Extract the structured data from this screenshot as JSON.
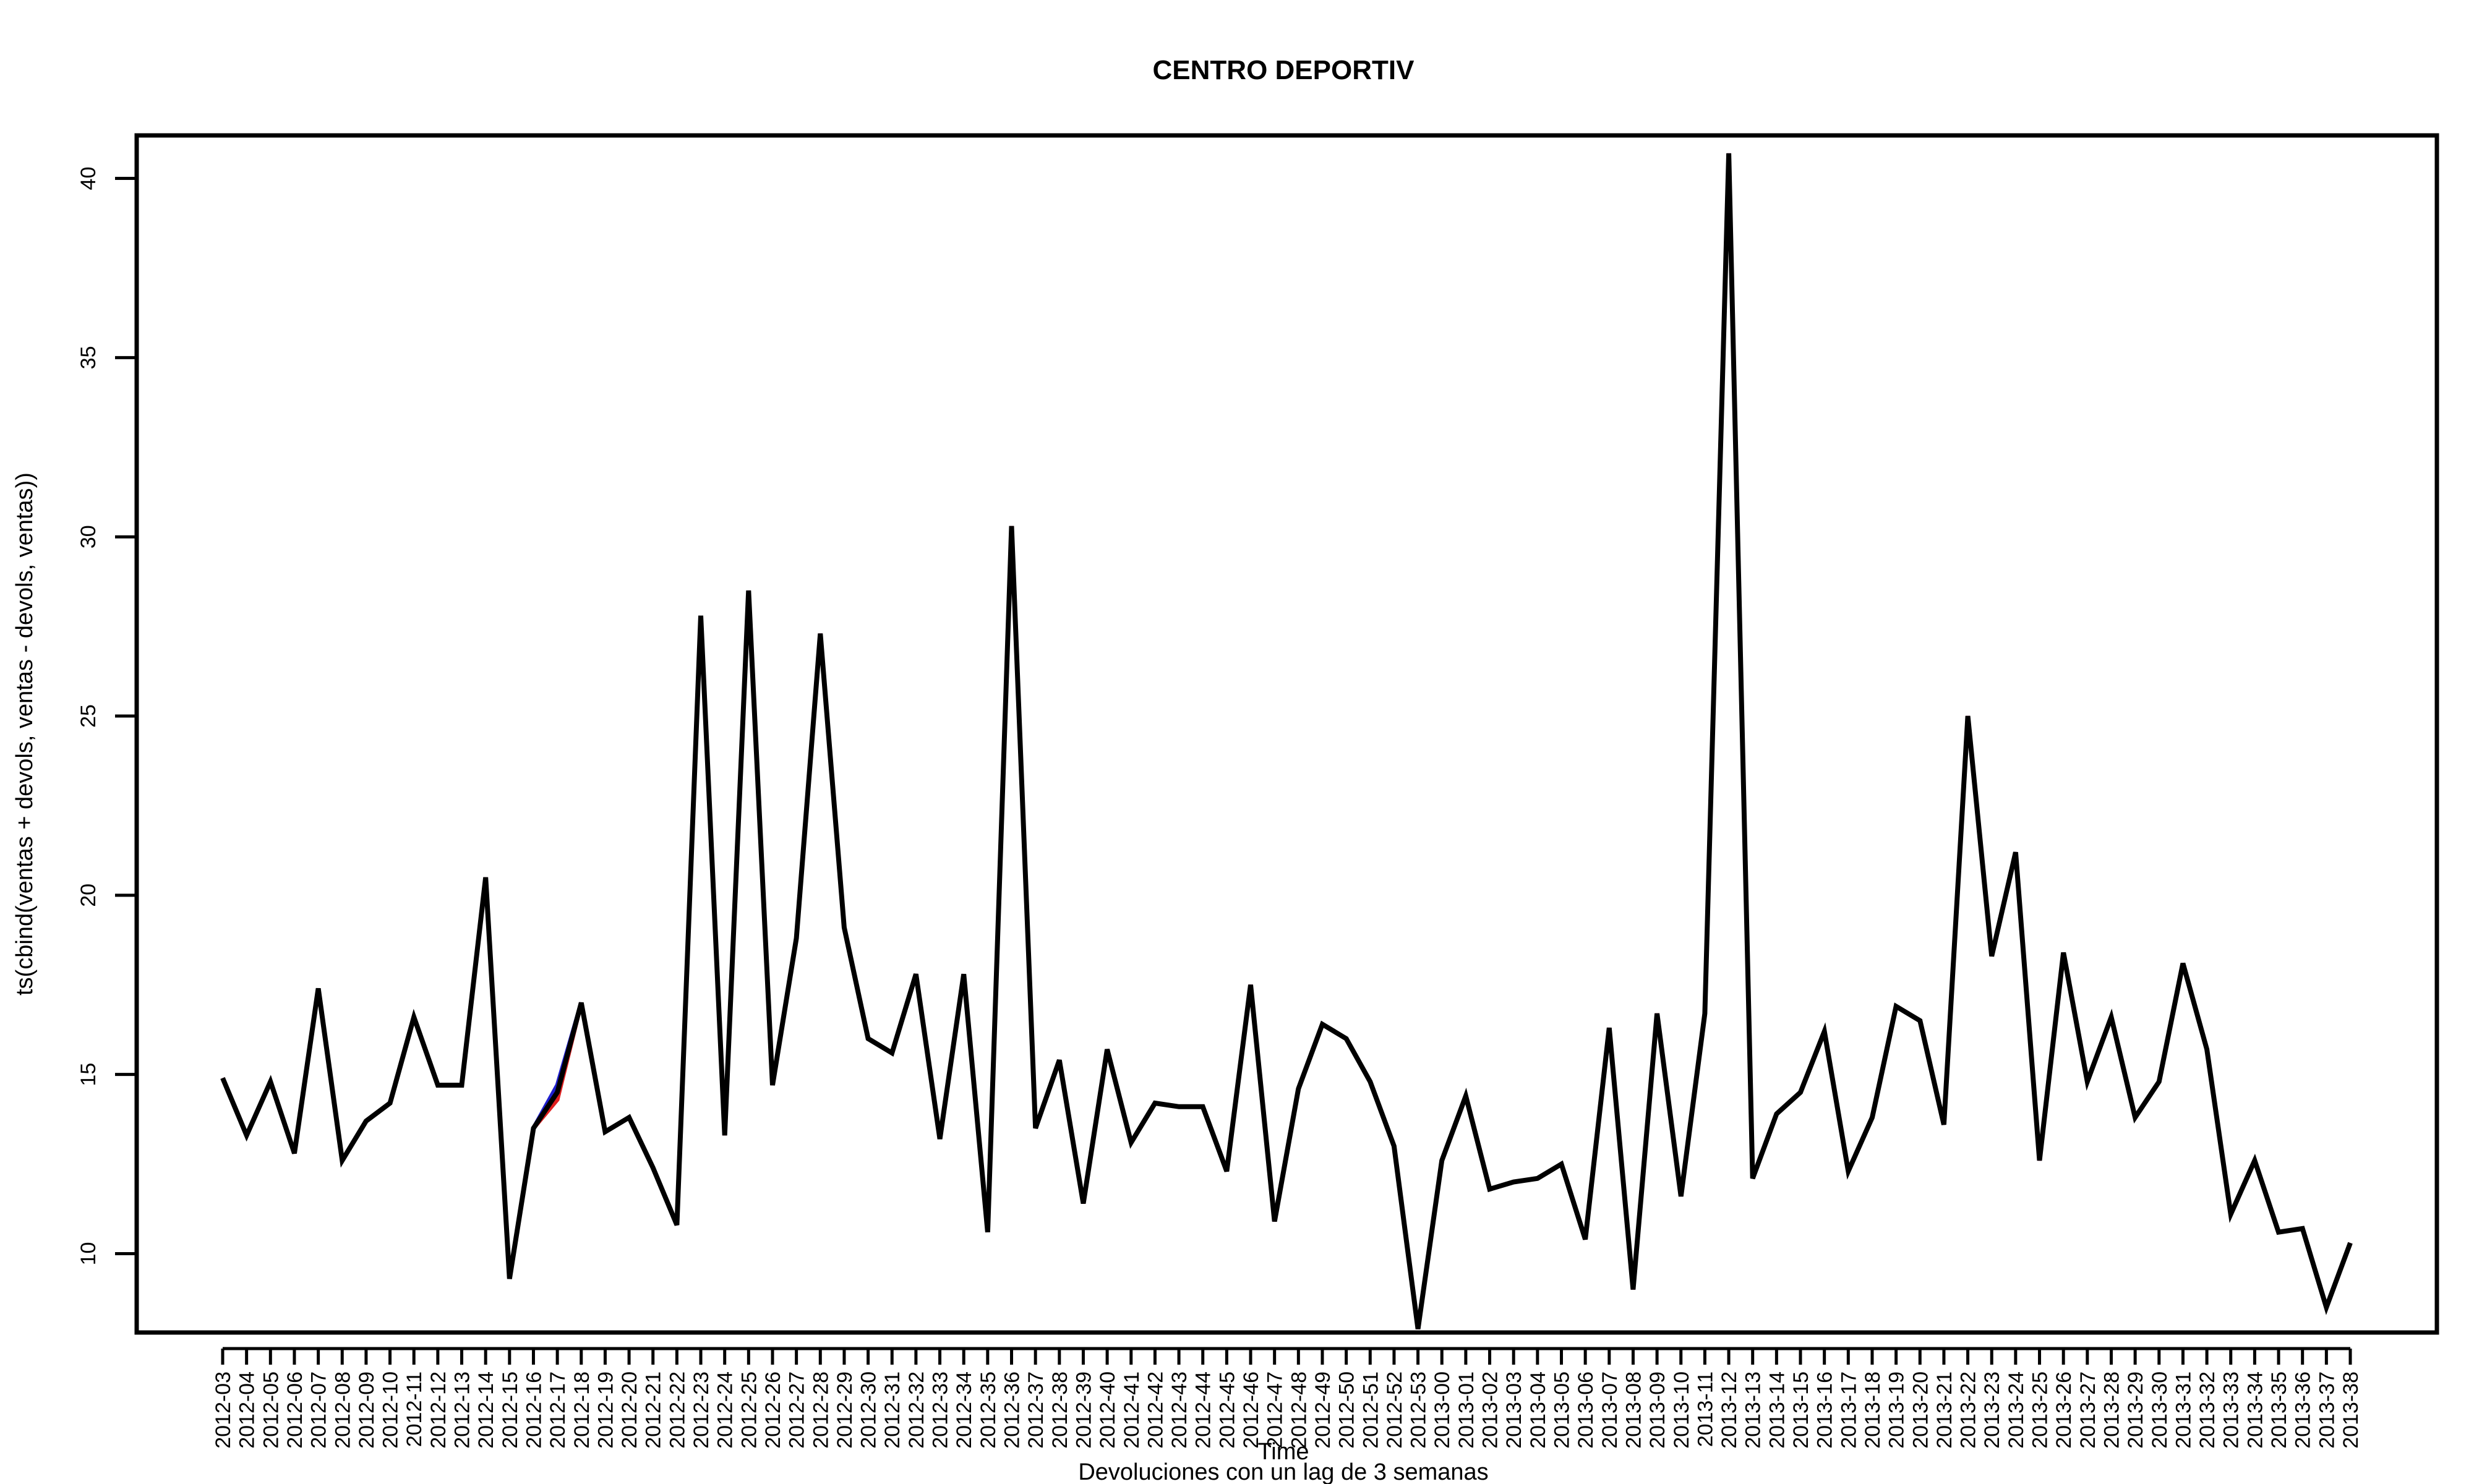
{
  "chart_data": {
    "type": "line",
    "title": "CENTRO DEPORTIV",
    "xlabel": "Time",
    "ylabel": "ts(cbind(ventas + devols, ventas - devols, ventas))",
    "subtitle": "Devoluciones con un lag de 3 semanas",
    "ylim": [
      7.8,
      41.2
    ],
    "yticks": [
      10,
      15,
      20,
      25,
      30,
      35,
      40
    ],
    "grid": false,
    "colors": {
      "upper": "#1f1fcf",
      "lower": "#e02020",
      "main": "#000000"
    },
    "categories": [
      "2012-03",
      "2012-04",
      "2012-05",
      "2012-06",
      "2012-07",
      "2012-08",
      "2012-09",
      "2012-10",
      "2012-11",
      "2012-12",
      "2012-13",
      "2012-14",
      "2012-15",
      "2012-16",
      "2012-17",
      "2012-18",
      "2012-19",
      "2012-20",
      "2012-21",
      "2012-22",
      "2012-23",
      "2012-24",
      "2012-25",
      "2012-26",
      "2012-27",
      "2012-28",
      "2012-29",
      "2012-30",
      "2012-31",
      "2012-32",
      "2012-33",
      "2012-34",
      "2012-35",
      "2012-36",
      "2012-37",
      "2012-38",
      "2012-39",
      "2012-40",
      "2012-41",
      "2012-42",
      "2012-43",
      "2012-44",
      "2012-45",
      "2012-46",
      "2012-47",
      "2012-48",
      "2012-49",
      "2012-50",
      "2012-51",
      "2012-52",
      "2012-53",
      "2013-00",
      "2013-01",
      "2013-02",
      "2013-03",
      "2013-04",
      "2013-05",
      "2013-06",
      "2013-07",
      "2013-08",
      "2013-09",
      "2013-10",
      "2013-11",
      "2013-12",
      "2013-13",
      "2013-14",
      "2013-15",
      "2013-16",
      "2013-17",
      "2013-18",
      "2013-19",
      "2013-20",
      "2013-21",
      "2013-22",
      "2013-23",
      "2013-24",
      "2013-25",
      "2013-26",
      "2013-27",
      "2013-28",
      "2013-29",
      "2013-30",
      "2013-31",
      "2013-32",
      "2013-33",
      "2013-34",
      "2013-35",
      "2013-36",
      "2013-37",
      "2013-38"
    ],
    "series": [
      {
        "key": "upper",
        "values": [
          14.9,
          13.3,
          14.8,
          12.8,
          17.4,
          12.6,
          13.7,
          14.2,
          16.6,
          14.7,
          14.7,
          20.5,
          9.3,
          13.5,
          14.7,
          17.0,
          13.4,
          13.8,
          12.4,
          10.8,
          27.8,
          13.3,
          28.5,
          14.7,
          18.8,
          27.3,
          19.1,
          16.0,
          15.6,
          17.8,
          13.2,
          17.8,
          10.6,
          30.3,
          13.5,
          15.4,
          11.4,
          15.7,
          13.1,
          14.2,
          14.1,
          14.1,
          12.3,
          17.5,
          10.9,
          14.6,
          16.4,
          16.0,
          14.8,
          13.0,
          7.9,
          12.6,
          14.4,
          11.8,
          12.0,
          12.1,
          12.5,
          10.4,
          16.3,
          9.0,
          16.7,
          11.6,
          16.7,
          40.7,
          12.1,
          13.9,
          14.5,
          16.2,
          12.3,
          13.8,
          16.9,
          16.5,
          13.6,
          25.0,
          18.3,
          21.2,
          12.6,
          18.4,
          14.8,
          16.6,
          13.8,
          14.8,
          18.1,
          15.7,
          11.1,
          12.6,
          10.6,
          10.7,
          8.5,
          10.3
        ]
      },
      {
        "key": "lower",
        "values": [
          14.9,
          13.3,
          14.8,
          12.8,
          17.4,
          12.6,
          13.7,
          14.2,
          16.6,
          14.7,
          14.7,
          20.5,
          9.3,
          13.5,
          14.3,
          17.0,
          13.4,
          13.8,
          12.4,
          10.8,
          27.8,
          13.3,
          28.5,
          14.7,
          18.8,
          27.3,
          19.1,
          16.0,
          15.6,
          17.8,
          13.2,
          17.8,
          10.6,
          30.3,
          13.5,
          15.4,
          11.4,
          15.7,
          13.1,
          14.2,
          14.1,
          14.1,
          12.3,
          17.5,
          10.9,
          14.6,
          16.4,
          16.0,
          14.8,
          13.0,
          7.9,
          12.6,
          14.4,
          11.8,
          12.0,
          12.1,
          12.5,
          10.4,
          16.3,
          9.0,
          16.7,
          11.6,
          16.7,
          40.7,
          12.1,
          13.9,
          14.5,
          16.2,
          12.3,
          13.8,
          16.9,
          16.5,
          13.6,
          25.0,
          18.3,
          21.2,
          12.6,
          18.4,
          14.8,
          16.6,
          13.8,
          14.8,
          18.1,
          15.7,
          11.1,
          12.6,
          10.6,
          10.7,
          8.5,
          10.3
        ]
      },
      {
        "key": "main",
        "values": [
          14.9,
          13.3,
          14.8,
          12.8,
          17.4,
          12.6,
          13.7,
          14.2,
          16.6,
          14.7,
          14.7,
          20.5,
          9.3,
          13.5,
          14.5,
          17.0,
          13.4,
          13.8,
          12.4,
          10.8,
          27.8,
          13.3,
          28.5,
          14.7,
          18.8,
          27.3,
          19.1,
          16.0,
          15.6,
          17.8,
          13.2,
          17.8,
          10.6,
          30.3,
          13.5,
          15.4,
          11.4,
          15.7,
          13.1,
          14.2,
          14.1,
          14.1,
          12.3,
          17.5,
          10.9,
          14.6,
          16.4,
          16.0,
          14.8,
          13.0,
          7.9,
          12.6,
          14.4,
          11.8,
          12.0,
          12.1,
          12.5,
          10.4,
          16.3,
          9.0,
          16.7,
          11.6,
          16.7,
          40.7,
          12.1,
          13.9,
          14.5,
          16.2,
          12.3,
          13.8,
          16.9,
          16.5,
          13.6,
          25.0,
          18.3,
          21.2,
          12.6,
          18.4,
          14.8,
          16.6,
          13.8,
          14.8,
          18.1,
          15.7,
          11.1,
          12.6,
          10.6,
          10.7,
          8.5,
          10.3
        ]
      }
    ]
  }
}
